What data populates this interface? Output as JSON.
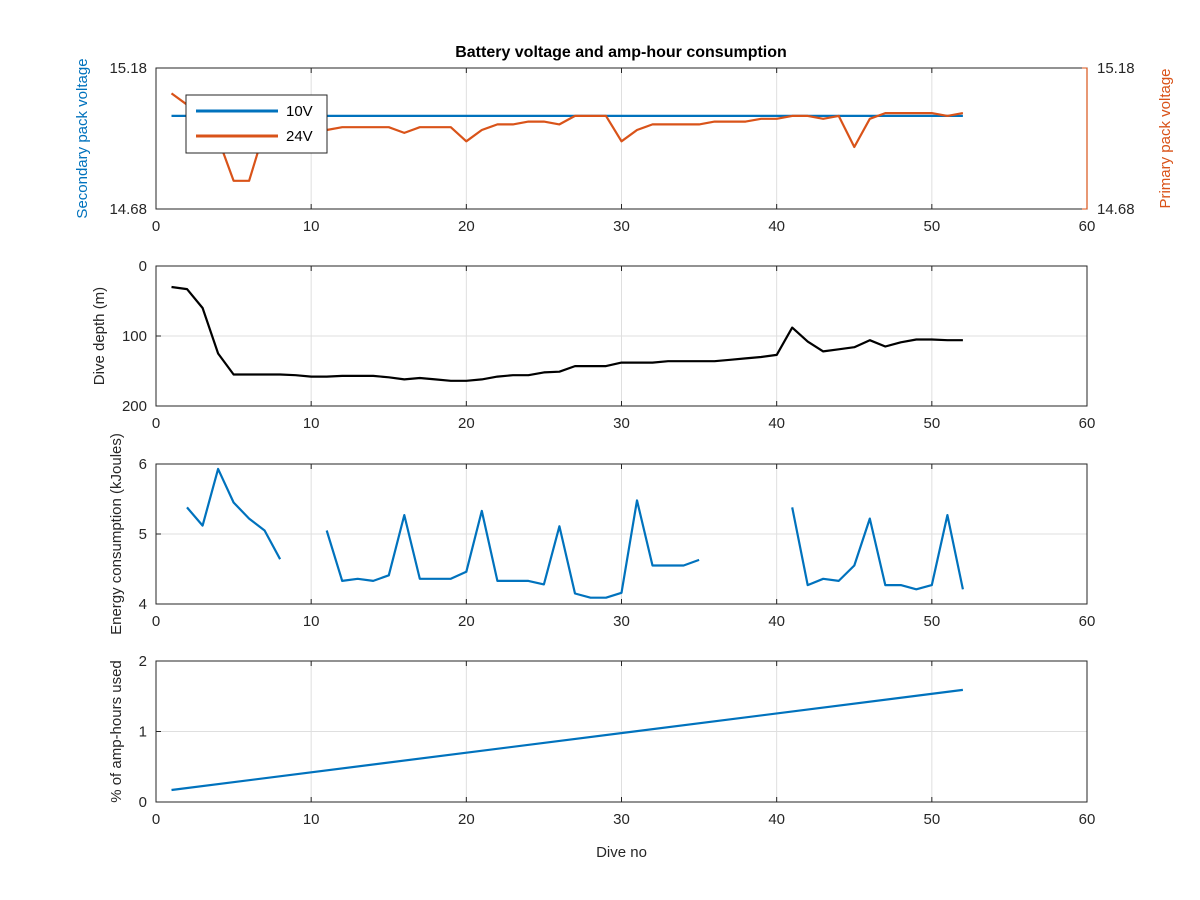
{
  "figure_title": "Battery voltage and amp-hour consumption",
  "colors": {
    "blue": "#0072BD",
    "orange": "#D95319",
    "black": "#000000",
    "axis": "#262626",
    "grid": "#dfdfdf"
  },
  "chart_data": [
    {
      "type": "line",
      "title": "Battery voltage and amp-hour consumption",
      "xlabel": "",
      "ylabel": "Secondary pack voltage",
      "ylabel_right": "Primary pack voltage",
      "xlim": [
        0,
        60
      ],
      "ylim": [
        14.68,
        15.18
      ],
      "ylim_right": [
        14.68,
        15.18
      ],
      "x_ticks": [
        "0",
        "10",
        "20",
        "30",
        "40",
        "50",
        "60"
      ],
      "y_ticks": [
        "14.68",
        "15.18"
      ],
      "y_ticks_right": [
        "14.68",
        "15.18"
      ],
      "grid": true,
      "legend": "top-left",
      "series": [
        {
          "name": "10V",
          "axis": "left",
          "color": "#0072BD",
          "x": [
            1,
            52
          ],
          "y": [
            15.01,
            15.01
          ]
        },
        {
          "name": "24V",
          "axis": "right",
          "color": "#D95319",
          "x": [
            1,
            2,
            3,
            4,
            5,
            6,
            7,
            8,
            9,
            10,
            11,
            12,
            13,
            14,
            15,
            16,
            17,
            18,
            19,
            20,
            21,
            22,
            23,
            24,
            25,
            26,
            27,
            28,
            29,
            30,
            31,
            32,
            33,
            34,
            35,
            36,
            37,
            38,
            39,
            40,
            41,
            42,
            43,
            44,
            45,
            46,
            47,
            48,
            49,
            50,
            51,
            52
          ],
          "y": [
            15.09,
            15.05,
            14.99,
            14.93,
            14.78,
            14.78,
            14.96,
            14.97,
            14.97,
            14.97,
            14.96,
            14.97,
            14.97,
            14.97,
            14.97,
            14.95,
            14.97,
            14.97,
            14.97,
            14.92,
            14.96,
            14.98,
            14.98,
            14.99,
            14.99,
            14.98,
            15.01,
            15.01,
            15.01,
            14.92,
            14.96,
            14.98,
            14.98,
            14.98,
            14.98,
            14.99,
            14.99,
            14.99,
            15.0,
            15.0,
            15.01,
            15.01,
            15.0,
            15.01,
            14.9,
            15.0,
            15.02,
            15.02,
            15.02,
            15.02,
            15.01,
            15.02
          ]
        }
      ]
    },
    {
      "type": "line",
      "title": "",
      "xlabel": "",
      "ylabel": "Dive depth (m)",
      "xlim": [
        0,
        60
      ],
      "ylim": [
        0,
        200
      ],
      "y_reversed": true,
      "x_ticks": [
        "0",
        "10",
        "20",
        "30",
        "40",
        "50",
        "60"
      ],
      "y_ticks": [
        "0",
        "100",
        "200"
      ],
      "grid": true,
      "series": [
        {
          "color": "#000000",
          "x": [
            1,
            2,
            3,
            4,
            5,
            6,
            7,
            8,
            9,
            10,
            11,
            12,
            13,
            14,
            15,
            16,
            17,
            18,
            19,
            20,
            21,
            22,
            23,
            24,
            25,
            26,
            27,
            28,
            29,
            30,
            31,
            32,
            33,
            34,
            35,
            36,
            37,
            38,
            39,
            40,
            41,
            42,
            43,
            44,
            45,
            46,
            47,
            48,
            49,
            50,
            51,
            52
          ],
          "y": [
            30,
            33,
            60,
            125,
            155,
            155,
            155,
            155,
            156,
            158,
            158,
            157,
            157,
            157,
            159,
            162,
            160,
            162,
            164,
            164,
            162,
            158,
            156,
            156,
            152,
            151,
            143,
            143,
            143,
            138,
            138,
            138,
            136,
            136,
            136,
            136,
            134,
            132,
            130,
            127,
            88,
            108,
            122,
            119,
            116,
            106,
            115,
            109,
            105,
            105,
            106,
            106
          ]
        }
      ]
    },
    {
      "type": "line",
      "title": "",
      "xlabel": "",
      "ylabel": "Energy consumption (kJoules)",
      "xlim": [
        0,
        60
      ],
      "ylim": [
        4,
        6
      ],
      "x_ticks": [
        "0",
        "10",
        "20",
        "30",
        "40",
        "50",
        "60"
      ],
      "y_ticks": [
        "4",
        "5",
        "6"
      ],
      "grid": true,
      "series": [
        {
          "color": "#0072BD",
          "segments": [
            {
              "x": [
                2,
                3,
                4,
                5,
                6,
                7,
                8
              ],
              "y": [
                5.38,
                5.12,
                5.93,
                5.45,
                5.22,
                5.05,
                4.64
              ]
            },
            {
              "x": [
                11,
                12,
                13,
                14,
                15,
                16,
                17,
                18,
                19,
                20,
                21,
                22,
                23,
                24,
                25,
                26,
                27,
                28,
                29,
                30,
                31,
                32,
                33,
                34,
                35
              ],
              "y": [
                5.05,
                4.33,
                4.36,
                4.33,
                4.41,
                5.27,
                4.36,
                4.36,
                4.36,
                4.46,
                5.33,
                4.33,
                4.33,
                4.33,
                4.28,
                5.11,
                4.15,
                4.09,
                4.09,
                4.16,
                5.48,
                4.55,
                4.55,
                4.55,
                4.63
              ]
            },
            {
              "x": [
                41,
                42,
                43,
                44,
                45,
                46,
                47,
                48,
                49,
                50,
                51,
                52
              ],
              "y": [
                5.38,
                4.27,
                4.36,
                4.33,
                4.55,
                5.22,
                4.27,
                4.27,
                4.21,
                4.27,
                5.27,
                4.21
              ]
            }
          ]
        }
      ]
    },
    {
      "type": "line",
      "title": "",
      "xlabel": "Dive no",
      "ylabel": "% of amp-hours used",
      "xlim": [
        0,
        60
      ],
      "ylim": [
        0,
        2
      ],
      "x_ticks": [
        "0",
        "10",
        "20",
        "30",
        "40",
        "50",
        "60"
      ],
      "y_ticks": [
        "0",
        "1",
        "2"
      ],
      "grid": true,
      "series": [
        {
          "color": "#0072BD",
          "x": [
            1,
            52
          ],
          "y": [
            0.17,
            1.59
          ]
        }
      ]
    }
  ]
}
